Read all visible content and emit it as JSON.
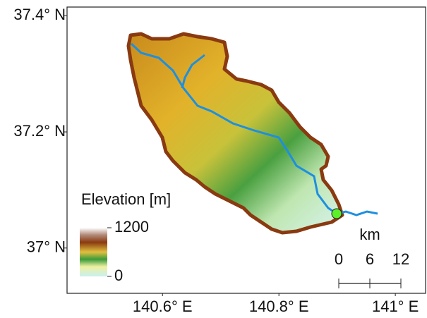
{
  "map": {
    "lon_range": [
      140.436,
      141.052
    ],
    "lat_range": [
      36.922,
      37.415
    ],
    "lat_ticks": [
      {
        "value": 37.4,
        "label": "37.4° N"
      },
      {
        "value": 37.2,
        "label": "37.2° N"
      },
      {
        "value": 37,
        "label": "37° N"
      }
    ],
    "lon_ticks": [
      {
        "value": 140.6,
        "label": "140.6° E"
      },
      {
        "value": 140.8,
        "label": "140.8° E"
      },
      {
        "value": 141,
        "label": "141° E"
      }
    ],
    "colorbar": {
      "title": "Elevation [m]",
      "range": [
        0,
        1200
      ],
      "ticks": [
        0,
        1200
      ]
    },
    "scale_bar": {
      "unit": "km",
      "ticks": [
        0,
        6,
        12
      ]
    }
  }
}
